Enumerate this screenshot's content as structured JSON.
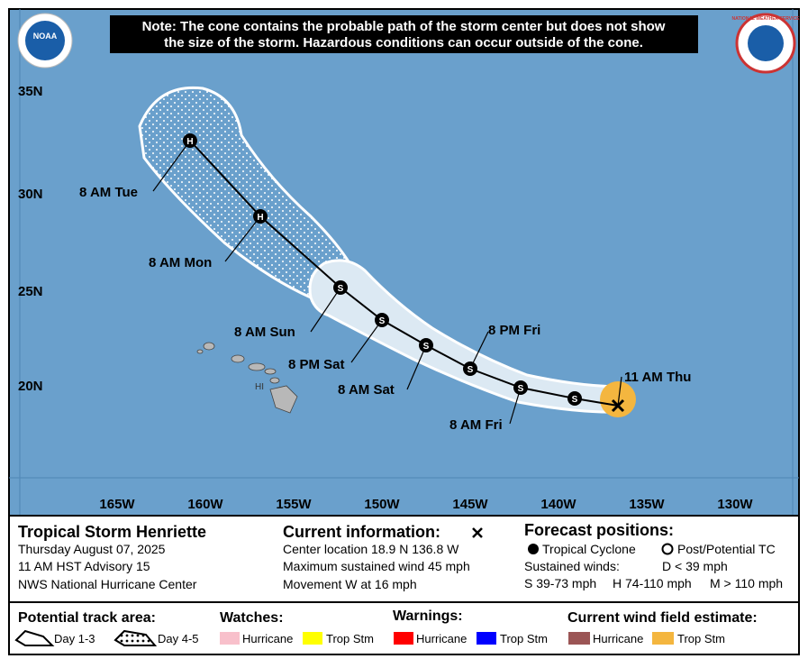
{
  "header": {
    "note_line1": "Note: The cone contains the probable path of the storm center but does not show",
    "note_line2": "the size of the storm. Hazardous conditions can occur outside of the cone.",
    "noaa_logo": "NOAA",
    "nws_logo": "NATIONAL WEATHER SERVICE"
  },
  "map": {
    "lat_labels": [
      "35N",
      "30N",
      "25N",
      "20N"
    ],
    "lon_labels": [
      "165W",
      "160W",
      "155W",
      "150W",
      "145W",
      "140W",
      "135W",
      "130W"
    ],
    "island_label": "HI"
  },
  "track": {
    "points": [
      {
        "symbol": "H",
        "label": "8 AM Tue"
      },
      {
        "symbol": "H",
        "label": "8 AM Mon"
      },
      {
        "symbol": "S",
        "label": "8 AM Sun"
      },
      {
        "symbol": "S",
        "label": "8 PM Sat"
      },
      {
        "symbol": "S",
        "label": "8 AM Sat"
      },
      {
        "symbol": "S",
        "label": "8 PM Fri"
      },
      {
        "symbol": "S",
        "label": "8 AM Fri"
      },
      {
        "symbol": "S"
      },
      {
        "label": "11 AM Thu"
      }
    ]
  },
  "info": {
    "storm": {
      "title": "Tropical Storm Henriette",
      "lines": [
        "Thursday August 07, 2025",
        "11 AM HST Advisory 15",
        "NWS National Hurricane Center"
      ]
    },
    "current": {
      "title": "Current information:",
      "lines": [
        "Center location 18.9 N 136.8 W",
        "Maximum sustained wind 45 mph",
        "Movement W at 16 mph"
      ]
    },
    "forecast": {
      "title": "Forecast positions:",
      "tropical": "Tropical Cyclone",
      "post": "Post/Potential TC",
      "winds_title": "Sustained winds:",
      "d": "D < 39 mph",
      "s": "S 39-73 mph",
      "h": "H 74-110 mph",
      "m": "M > 110 mph"
    }
  },
  "legend": {
    "track_area": {
      "title": "Potential track area:",
      "day13": "Day 1-3",
      "day45": "Day 4-5"
    },
    "watches": {
      "title": "Watches:",
      "hurricane": "Hurricane",
      "trop_stm": "Trop Stm"
    },
    "warnings": {
      "title": "Warnings:",
      "hurricane": "Hurricane",
      "trop_stm": "Trop Stm"
    },
    "wind_field": {
      "title": "Current wind field estimate:",
      "hurricane": "Hurricane",
      "trop_stm": "Trop Stm"
    }
  }
}
